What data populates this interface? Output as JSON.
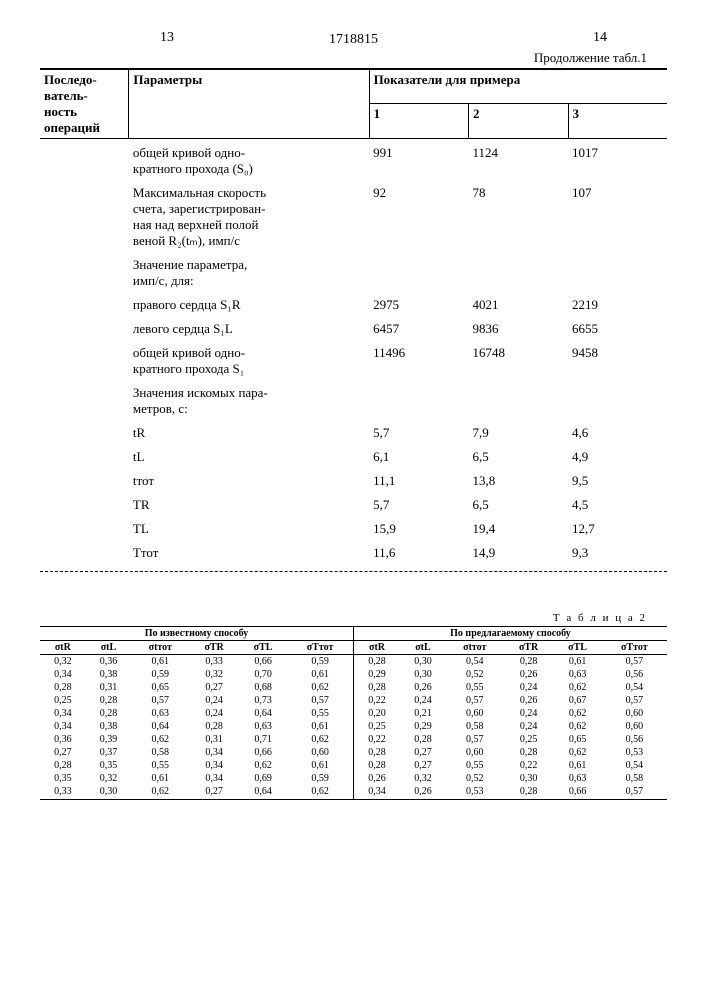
{
  "header": {
    "page_left": "13",
    "patent": "1718815",
    "page_right": "14",
    "continuation": "Продолжение табл.1"
  },
  "table1": {
    "col0_header": "Последо-\nватель-\nность\nопераций",
    "col1_header": "Параметры",
    "indicators_header": "Показатели для примера",
    "ex_cols": [
      "1",
      "2",
      "3"
    ],
    "rows": [
      {
        "label": "общей кривой одно-\nкратного прохода (S₀)",
        "vals": [
          "991",
          "1124",
          "1017"
        ],
        "cls": "param-label"
      },
      {
        "label": "Максимальная скорость\nсчета, зарегистрирован-\nная над верхней полой\nвеной R₂(tₘ), имп/с",
        "vals": [
          "92",
          "78",
          "107"
        ],
        "cls": "param-label"
      },
      {
        "label": "Значение параметра,\nимп/с, для:",
        "vals": [
          "",
          "",
          ""
        ],
        "cls": "param-label"
      },
      {
        "label": "правого сердца S₁R",
        "vals": [
          "2975",
          "4021",
          "2219"
        ],
        "cls": "param-sub"
      },
      {
        "label": "левого сердца S₁L",
        "vals": [
          "6457",
          "9836",
          "6655"
        ],
        "cls": "param-sub"
      },
      {
        "label": "общей кривой одно-\nкратного прохода S₁",
        "vals": [
          "11496",
          "16748",
          "9458"
        ],
        "cls": "param-sub"
      },
      {
        "label": "Значения искомых пара-\nметров, с:",
        "vals": [
          "",
          "",
          ""
        ],
        "cls": "param-label"
      },
      {
        "label": "tR",
        "vals": [
          "5,7",
          "7,9",
          "4,6"
        ],
        "cls": "param-sub"
      },
      {
        "label": "tL",
        "vals": [
          "6,1",
          "6,5",
          "4,9"
        ],
        "cls": "param-sub"
      },
      {
        "label": "tтот",
        "vals": [
          "11,1",
          "13,8",
          "9,5"
        ],
        "cls": "param-sub"
      },
      {
        "label": "TR",
        "vals": [
          "5,7",
          "6,5",
          "4,5"
        ],
        "cls": "param-sub"
      },
      {
        "label": "TL",
        "vals": [
          "15,9",
          "19,4",
          "12,7"
        ],
        "cls": "param-sub"
      },
      {
        "label": "Tтот",
        "vals": [
          "11,6",
          "14,9",
          "9,3"
        ],
        "cls": "param-sub"
      }
    ]
  },
  "table2": {
    "title": "Т а б л и ц а   2",
    "group1_header": "По известному способу",
    "group2_header": "По предлагаемому способу",
    "cols": [
      "σtR",
      "σtL",
      "σtтот",
      "σTR",
      "σTL",
      "σTтот",
      "σtR",
      "σtL",
      "σtтот",
      "σTR",
      "σTL",
      "σTтот"
    ],
    "rows": [
      [
        "0,32",
        "0,36",
        "0,61",
        "0,33",
        "0,66",
        "0,59",
        "0,28",
        "0,30",
        "0,54",
        "0,28",
        "0,61",
        "0,57"
      ],
      [
        "0,34",
        "0,38",
        "0,59",
        "0,32",
        "0,70",
        "0,61",
        "0,29",
        "0,30",
        "0,52",
        "0,26",
        "0,63",
        "0,56"
      ],
      [
        "0,28",
        "0,31",
        "0,65",
        "0,27",
        "0,68",
        "0,62",
        "0,28",
        "0,26",
        "0,55",
        "0,24",
        "0,62",
        "0,54"
      ],
      [
        "0,25",
        "0,28",
        "0,57",
        "0,24",
        "0,73",
        "0,57",
        "0,22",
        "0,24",
        "0,57",
        "0,26",
        "0,67",
        "0,57"
      ],
      [
        "0,34",
        "0,28",
        "0,63",
        "0,24",
        "0,64",
        "0,55",
        "0,20",
        "0,21",
        "0,60",
        "0,24",
        "0,62",
        "0,60"
      ],
      [
        "0,34",
        "0,38",
        "0,64",
        "0,28",
        "0,63",
        "0,61",
        "0,25",
        "0,29",
        "0,58",
        "0,24",
        "0,62",
        "0,60"
      ],
      [
        "0,36",
        "0,39",
        "0,62",
        "0,31",
        "0,71",
        "0,62",
        "0,22",
        "0,28",
        "0,57",
        "0,25",
        "0,65",
        "0,56"
      ],
      [
        "0,27",
        "0,37",
        "0,58",
        "0,34",
        "0,66",
        "0,60",
        "0,28",
        "0,27",
        "0,60",
        "0,28",
        "0,62",
        "0,53"
      ],
      [
        "0,28",
        "0,35",
        "0,55",
        "0,34",
        "0,62",
        "0,61",
        "0,28",
        "0,27",
        "0,55",
        "0,22",
        "0,61",
        "0,54"
      ],
      [
        "0,35",
        "0,32",
        "0,61",
        "0,34",
        "0,69",
        "0,59",
        "0,26",
        "0,32",
        "0,52",
        "0,30",
        "0,63",
        "0,58"
      ],
      [
        "0,33",
        "0,30",
        "0,62",
        "0,27",
        "0,64",
        "0,62",
        "0,34",
        "0,26",
        "0,53",
        "0,28",
        "0,66",
        "0,57"
      ]
    ]
  }
}
